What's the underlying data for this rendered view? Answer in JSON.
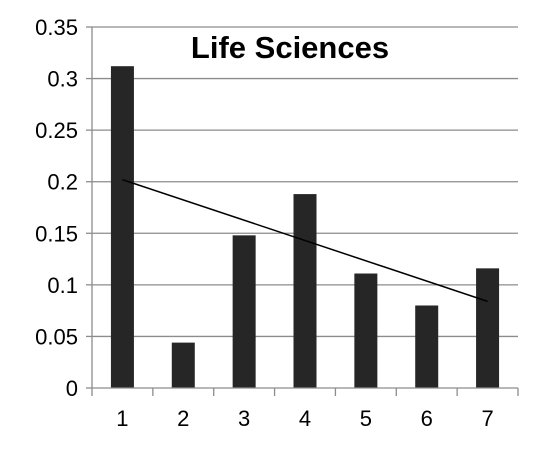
{
  "chart_data": {
    "type": "bar",
    "title": "Life Sciences",
    "xlabel": "",
    "ylabel": "",
    "categories": [
      "1",
      "2",
      "3",
      "4",
      "5",
      "6",
      "7"
    ],
    "values": [
      0.312,
      0.044,
      0.148,
      0.188,
      0.111,
      0.08,
      0.116
    ],
    "ylim": [
      0,
      0.35
    ],
    "yticks": [
      0,
      0.05,
      0.1,
      0.15,
      0.2,
      0.25,
      0.3,
      0.35
    ],
    "ytick_labels": [
      "0",
      "0.05",
      "0.1",
      "0.15",
      "0.2",
      "0.25",
      "0.3",
      "0.35"
    ],
    "trendline": {
      "type": "linear",
      "start": {
        "x": "1",
        "y": 0.202
      },
      "end": {
        "x": "7",
        "y": 0.084
      }
    },
    "grid": true,
    "legend": "none",
    "colors": {
      "bar": "#262626",
      "grid": "#8c8c8c",
      "axis": "#8c8c8c",
      "trendline": "#000000"
    }
  }
}
